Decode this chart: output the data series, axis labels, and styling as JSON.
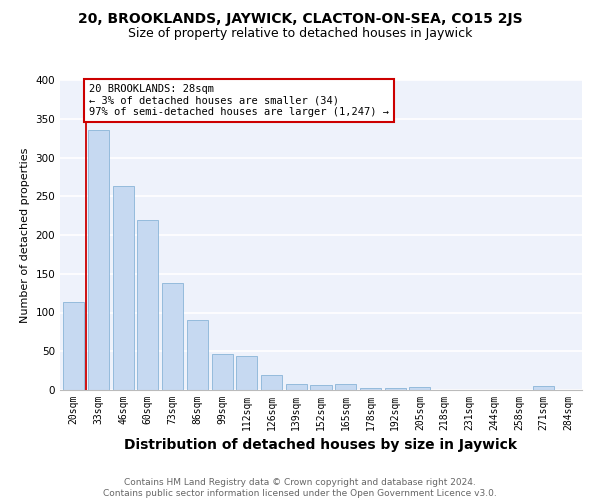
{
  "title": "20, BROOKLANDS, JAYWICK, CLACTON-ON-SEA, CO15 2JS",
  "subtitle": "Size of property relative to detached houses in Jaywick",
  "xlabel": "Distribution of detached houses by size in Jaywick",
  "ylabel": "Number of detached properties",
  "categories": [
    "20sqm",
    "33sqm",
    "46sqm",
    "60sqm",
    "73sqm",
    "86sqm",
    "99sqm",
    "112sqm",
    "126sqm",
    "139sqm",
    "152sqm",
    "165sqm",
    "178sqm",
    "192sqm",
    "205sqm",
    "218sqm",
    "231sqm",
    "244sqm",
    "258sqm",
    "271sqm",
    "284sqm"
  ],
  "values": [
    113,
    335,
    263,
    220,
    138,
    90,
    46,
    44,
    19,
    8,
    6,
    8,
    3,
    2,
    4,
    0,
    0,
    0,
    0,
    5,
    0
  ],
  "bar_color": "#c6d9f1",
  "bar_edge_color": "#8ab4d8",
  "annotation_text_line1": "20 BROOKLANDS: 28sqm",
  "annotation_text_line2": "← 3% of detached houses are smaller (34)",
  "annotation_text_line3": "97% of semi-detached houses are larger (1,247) →",
  "annotation_box_color": "#ffffff",
  "annotation_box_edge_color": "#cc0000",
  "red_line_color": "#cc0000",
  "ylim": [
    0,
    400
  ],
  "yticks": [
    0,
    50,
    100,
    150,
    200,
    250,
    300,
    350,
    400
  ],
  "background_color": "#eef2fb",
  "grid_color": "#ffffff",
  "footer_line1": "Contains HM Land Registry data © Crown copyright and database right 2024.",
  "footer_line2": "Contains public sector information licensed under the Open Government Licence v3.0.",
  "title_fontsize": 10,
  "subtitle_fontsize": 9,
  "xlabel_fontsize": 10,
  "ylabel_fontsize": 8,
  "tick_fontsize": 7,
  "footer_fontsize": 6.5,
  "annotation_fontsize": 7.5
}
